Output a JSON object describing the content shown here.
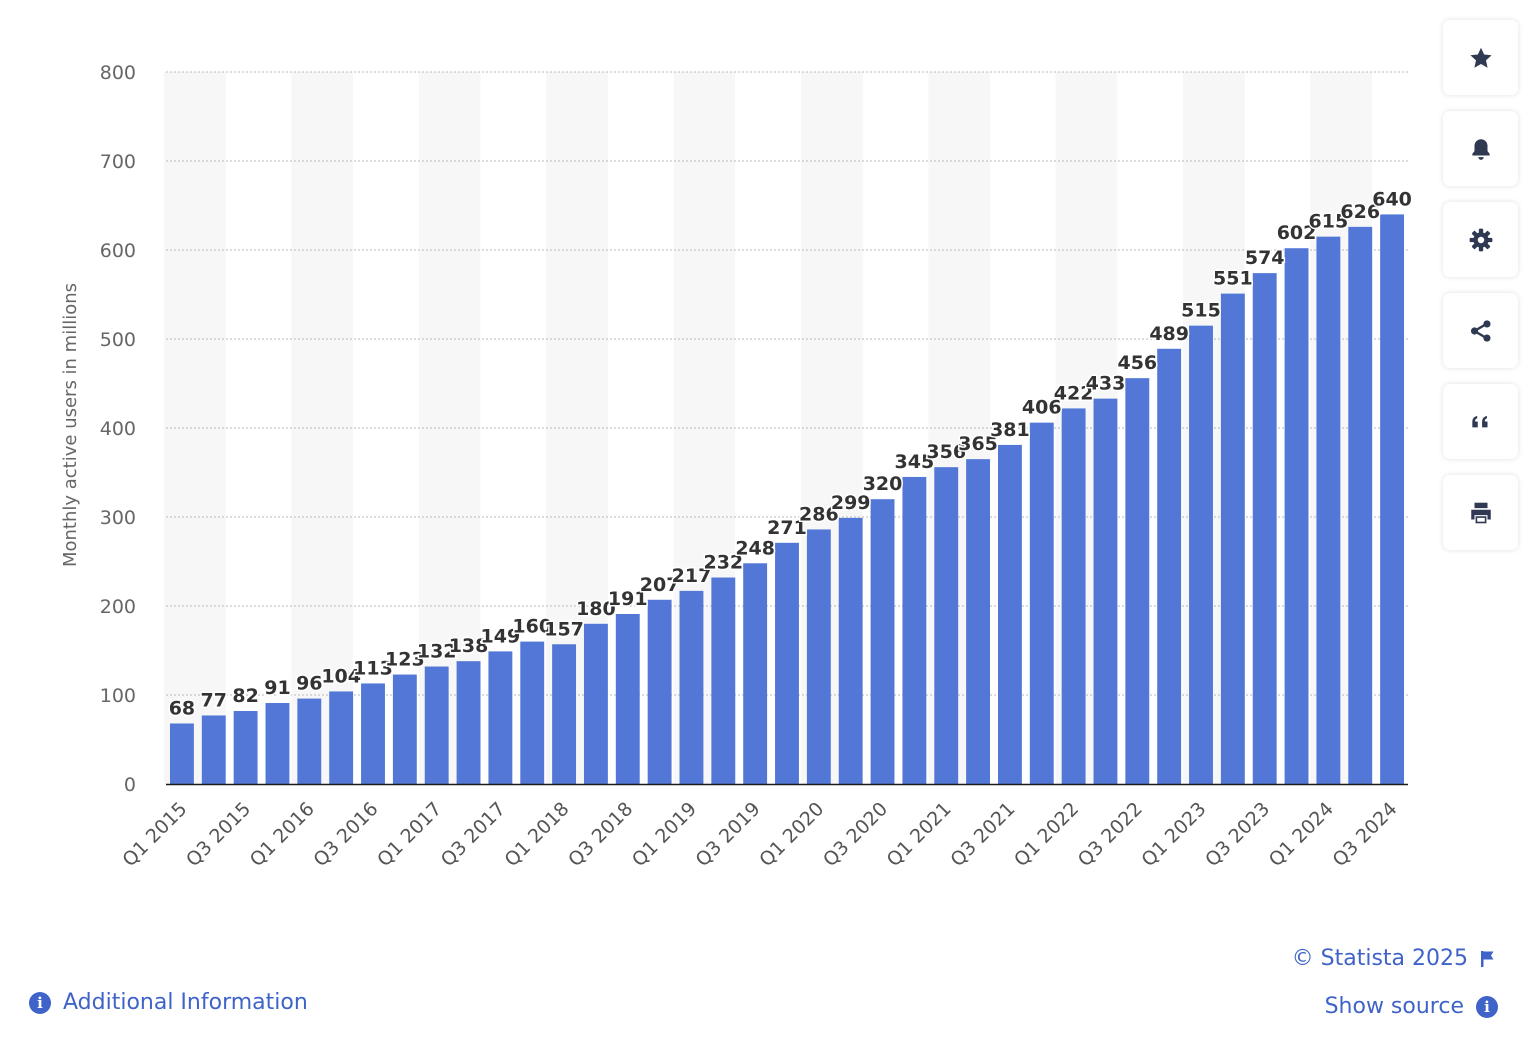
{
  "chart_data": {
    "type": "bar",
    "title": "",
    "xlabel": "",
    "ylabel": "Monthly active users in millions",
    "ylim": [
      0,
      800
    ],
    "yticks": [
      0,
      100,
      200,
      300,
      400,
      500,
      600,
      700,
      800
    ],
    "grid": true,
    "bar_color": "#5277d6",
    "band_color": "#f7f7f7",
    "categories": [
      "Q1 2015",
      "Q2 2015",
      "Q3 2015",
      "Q4 2015",
      "Q1 2016",
      "Q2 2016",
      "Q3 2016",
      "Q4 2016",
      "Q1 2017",
      "Q2 2017",
      "Q3 2017",
      "Q4 2017",
      "Q1 2018",
      "Q2 2018",
      "Q3 2018",
      "Q4 2018",
      "Q1 2019",
      "Q2 2019",
      "Q3 2019",
      "Q4 2019",
      "Q1 2020",
      "Q2 2020",
      "Q3 2020",
      "Q4 2020",
      "Q1 2021",
      "Q2 2021",
      "Q3 2021",
      "Q4 2021",
      "Q1 2022",
      "Q2 2022",
      "Q3 2022",
      "Q4 2022",
      "Q1 2023",
      "Q2 2023",
      "Q3 2023",
      "Q4 2023",
      "Q1 2024",
      "Q2 2024",
      "Q3 2024"
    ],
    "shown_x_labels": [
      "Q1 2015",
      "Q3 2015",
      "Q1 2016",
      "Q3 2016",
      "Q1 2017",
      "Q3 2017",
      "Q1 2018",
      "Q3 2018",
      "Q1 2019",
      "Q3 2019",
      "Q1 2020",
      "Q3 2020",
      "Q1 2021",
      "Q3 2021",
      "Q1 2022",
      "Q3 2022",
      "Q1 2023",
      "Q3 2023",
      "Q1 2024",
      "Q3 2024"
    ],
    "values": [
      68,
      77,
      82,
      91,
      96,
      104,
      113,
      123,
      132,
      138,
      149,
      160,
      157,
      180,
      191,
      207,
      217,
      232,
      248,
      271,
      286,
      299,
      320,
      345,
      356,
      365,
      381,
      406,
      422,
      433,
      456,
      489,
      515,
      551,
      574,
      602,
      615,
      626,
      640
    ]
  },
  "toolbar": {
    "buttons": [
      {
        "name": "favorite-button",
        "icon": "star-icon"
      },
      {
        "name": "notification-button",
        "icon": "bell-icon"
      },
      {
        "name": "settings-button",
        "icon": "gear-icon"
      },
      {
        "name": "share-button",
        "icon": "share-icon"
      },
      {
        "name": "cite-button",
        "icon": "quote-icon"
      },
      {
        "name": "print-button",
        "icon": "print-icon"
      }
    ],
    "icon_color": "#2f3a52"
  },
  "footer": {
    "credit": "© Statista 2025",
    "show_source": "Show source",
    "additional_info": "Additional Information",
    "link_color": "#3f63c8"
  }
}
